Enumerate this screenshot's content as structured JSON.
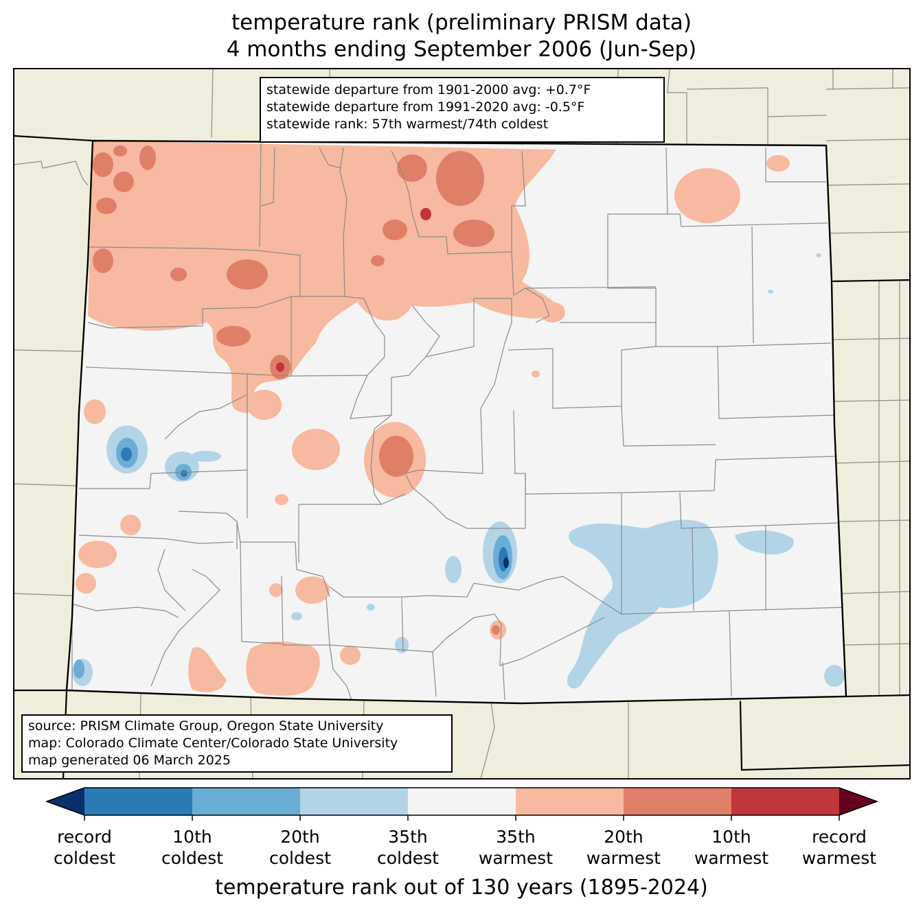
{
  "title": {
    "line1": "temperature rank (preliminary PRISM data)",
    "line2": "4 months ending September 2006 (Jun-Sep)"
  },
  "stats": {
    "line1": "statewide departure from 1901-2000 avg: +0.7°F",
    "line2": "statewide departure from 1991-2020 avg: -0.5°F",
    "line3": "statewide rank: 57th warmest/74th coldest"
  },
  "source": {
    "line1": "source: PRISM Climate Group, Oregon State University",
    "line2": "map: Colorado Climate Center/Colorado State University",
    "line3": "map generated 06 March 2025"
  },
  "colorbar": {
    "label": "temperature rank out of 130 years (1895-2024)",
    "colors": [
      "#08306b",
      "#2c7bb6",
      "#6aaed6",
      "#b3d4e7",
      "#f4f4f4",
      "#f7b99f",
      "#e07f67",
      "#c0363b",
      "#67001f"
    ],
    "ticks": [
      {
        "top": "record",
        "bottom": "coldest"
      },
      {
        "top": "10th",
        "bottom": "coldest"
      },
      {
        "top": "20th",
        "bottom": "coldest"
      },
      {
        "top": "35th",
        "bottom": "coldest"
      },
      {
        "top": "35th",
        "bottom": "warmest"
      },
      {
        "top": "20th",
        "bottom": "warmest"
      },
      {
        "top": "10th",
        "bottom": "warmest"
      },
      {
        "top": "record",
        "bottom": "warmest"
      }
    ]
  },
  "map": {
    "land_color": "#efeedc",
    "state_fill": "#f4f4f4"
  }
}
